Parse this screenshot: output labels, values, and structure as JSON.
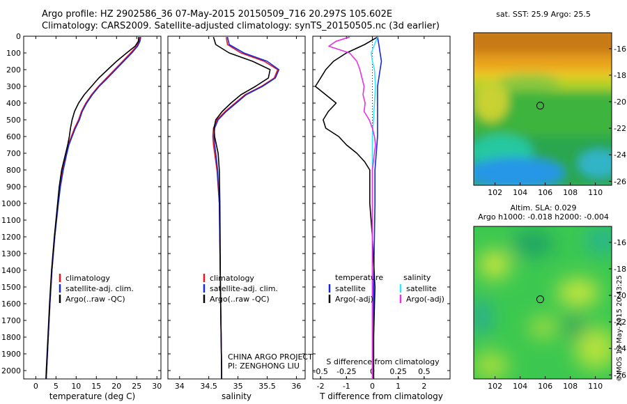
{
  "header": {
    "line1": "Argo profile: HZ 2902586_36 07-May-2015 20150509_716 20.297S 105.602E",
    "line2": "Climatology: CARS2009. Satellite-adjusted climatology: synTS_20150505.nc (3d earlier)"
  },
  "maps": {
    "sst_title": "sat. SST: 25.9 Argo: 25.5",
    "sla_title1": "Altim. SLA: 0.029",
    "sla_title2": "Argo h1000: -0.018 h2000: -0.004",
    "x_ticks": [
      "102",
      "104",
      "106",
      "108",
      "110"
    ],
    "y_ticks": [
      "-16",
      "-18",
      "-20",
      "-22",
      "-24",
      "-26"
    ],
    "x_range": [
      100.3,
      111.3
    ],
    "y_range": [
      -14.8,
      -26.3
    ],
    "float_lon": 105.602,
    "float_lat": -20.297
  },
  "credit": "©IMOS 13-May-2015 20:43:25",
  "project": {
    "line1": "CHINA ARGO PROJECT",
    "line2": "PI: ZENGHONG LIU"
  },
  "colors": {
    "climatology": "#e8141e",
    "satellite": "#1428dc",
    "argo": "#000000",
    "sat_salinity": "#32e6ff",
    "argo_salinity": "#e632e6"
  },
  "chart_data": [
    {
      "type": "line",
      "title": "",
      "xlabel": "temperature (deg C)",
      "ylabel": "",
      "xlim": [
        -3,
        31
      ],
      "ylim": [
        2050,
        0
      ],
      "x_ticks": [
        "0",
        "5",
        "10",
        "15",
        "20",
        "25",
        "30"
      ],
      "y_ticks": [
        "0",
        "100",
        "200",
        "300",
        "400",
        "500",
        "600",
        "700",
        "800",
        "900",
        "1000",
        "1100",
        "1200",
        "1300",
        "1400",
        "1500",
        "1600",
        "1700",
        "1800",
        "1900",
        "2000"
      ],
      "legend": [
        "climatology",
        "satellite-adj. clim.",
        "Argo(..raw -QC)"
      ],
      "legend_position": "bottom-right",
      "series": [
        {
          "name": "climatology",
          "depth": [
            5,
            30,
            60,
            100,
            150,
            200,
            250,
            300,
            350,
            400,
            450,
            500,
            550,
            600,
            650,
            700,
            800,
            900,
            1000,
            1200,
            1400,
            1600,
            1800,
            2000,
            2050
          ],
          "values": [
            25.8,
            25.6,
            25.0,
            23.5,
            21.5,
            19.5,
            17.5,
            15.5,
            13.8,
            12.4,
            11.3,
            10.6,
            9.6,
            8.8,
            8.0,
            7.5,
            6.6,
            6.0,
            5.5,
            4.7,
            4.0,
            3.5,
            3.1,
            2.7,
            2.6
          ]
        },
        {
          "name": "satellite-adj. clim.",
          "depth": [
            5,
            30,
            60,
            100,
            150,
            200,
            250,
            300,
            350,
            400,
            450,
            500,
            550,
            600,
            650,
            700,
            800,
            900,
            1000,
            1200,
            1400,
            1600,
            1800,
            2000,
            2050
          ],
          "values": [
            26.0,
            25.8,
            25.2,
            23.8,
            21.8,
            19.8,
            17.8,
            15.7,
            14.0,
            12.6,
            11.5,
            10.8,
            9.8,
            9.0,
            8.2,
            7.7,
            6.8,
            6.1,
            5.6,
            4.7,
            4.0,
            3.5,
            3.1,
            2.7,
            2.6
          ]
        },
        {
          "name": "Argo(..raw -QC)",
          "depth": [
            5,
            30,
            60,
            100,
            150,
            200,
            250,
            300,
            350,
            400,
            450,
            500,
            550,
            600,
            650,
            700,
            800,
            900,
            1000,
            1200,
            1400,
            1600,
            1800,
            2000,
            2050
          ],
          "values": [
            25.5,
            25.4,
            24.6,
            22.5,
            20.0,
            17.8,
            15.6,
            13.8,
            12.0,
            10.6,
            9.6,
            9.0,
            8.6,
            8.3,
            7.9,
            7.4,
            6.4,
            5.8,
            5.4,
            4.6,
            3.9,
            3.4,
            3.0,
            2.6,
            2.5
          ]
        }
      ]
    },
    {
      "type": "line",
      "title": "",
      "xlabel": "salinity",
      "ylabel": "",
      "xlim": [
        33.8,
        36.15
      ],
      "ylim": [
        2050,
        0
      ],
      "x_ticks": [
        "34",
        "34.5",
        "35",
        "35.5",
        "36"
      ],
      "legend": [
        "climatology",
        "satellite-adj. clim.",
        "Argo(..raw -QC)"
      ],
      "legend_position": "bottom-right",
      "series": [
        {
          "name": "climatology",
          "depth": [
            5,
            50,
            100,
            150,
            200,
            250,
            300,
            350,
            400,
            450,
            500,
            550,
            600,
            650,
            700,
            800,
            1000,
            1500,
            2000,
            2050
          ],
          "values": [
            34.8,
            34.82,
            35.05,
            35.45,
            35.68,
            35.62,
            35.4,
            35.12,
            34.95,
            34.78,
            34.64,
            34.58,
            34.57,
            34.58,
            34.6,
            34.64,
            34.68,
            34.7,
            34.72,
            34.72
          ]
        },
        {
          "name": "satellite-adj. clim.",
          "depth": [
            5,
            50,
            100,
            150,
            200,
            250,
            300,
            350,
            400,
            450,
            500,
            550,
            600,
            650,
            700,
            800,
            1000,
            1500,
            2000,
            2050
          ],
          "values": [
            34.82,
            34.85,
            35.1,
            35.5,
            35.7,
            35.64,
            35.42,
            35.14,
            34.97,
            34.8,
            34.66,
            34.6,
            34.59,
            34.6,
            34.62,
            34.65,
            34.68,
            34.7,
            34.72,
            34.72
          ]
        },
        {
          "name": "Argo(..raw -QC)",
          "depth": [
            5,
            50,
            100,
            150,
            200,
            250,
            300,
            350,
            400,
            450,
            500,
            550,
            600,
            650,
            700,
            800,
            1000,
            1500,
            2000,
            2050
          ],
          "values": [
            34.58,
            34.62,
            34.85,
            35.25,
            35.55,
            35.52,
            35.3,
            35.05,
            34.88,
            34.73,
            34.62,
            34.59,
            34.6,
            34.63,
            34.66,
            34.68,
            34.69,
            34.7,
            34.72,
            34.72
          ]
        }
      ]
    },
    {
      "type": "line",
      "title": "",
      "xlabel": "T difference from climatology",
      "xlabel_top": "S difference from climatology",
      "ylabel": "",
      "xlim": [
        -2.3,
        3.0
      ],
      "ylim": [
        2050,
        0
      ],
      "x_ticks_bottom": [
        "-2",
        "-1",
        "0",
        "1",
        "2"
      ],
      "x_ticks_top": [
        "-0.5",
        "-0.25",
        "0",
        "0.25",
        "0.5"
      ],
      "legend_titles": [
        "temperature",
        "salinity"
      ],
      "legend": [
        "satellite",
        "Argo(-adj)",
        "satellite",
        "Argo(-adj)"
      ],
      "legend_position": "bottom-right",
      "series": [
        {
          "name": "satellite",
          "variable": "temperature",
          "depth": [
            5,
            50,
            100,
            150,
            200,
            250,
            300,
            400,
            500,
            600,
            700,
            800,
            1000,
            1500,
            2000,
            2050
          ],
          "values": [
            0.2,
            0.25,
            0.3,
            0.35,
            0.3,
            0.25,
            0.2,
            0.2,
            0.2,
            0.2,
            0.15,
            0.1,
            0.1,
            0.05,
            0.05,
            0.05
          ]
        },
        {
          "name": "Argo(-adj)",
          "variable": "temperature",
          "depth": [
            5,
            50,
            100,
            150,
            200,
            250,
            300,
            350,
            400,
            450,
            500,
            550,
            600,
            650,
            700,
            750,
            800,
            900,
            1000,
            1200,
            1500,
            1800,
            2000,
            2050
          ],
          "values": [
            0.2,
            -0.3,
            -1.0,
            -1.5,
            -1.8,
            -2.0,
            -2.2,
            -1.8,
            -1.4,
            -1.7,
            -1.9,
            -1.8,
            -1.3,
            -1.0,
            -0.6,
            -0.3,
            -0.1,
            -0.1,
            -0.1,
            0.0,
            0.1,
            0.05,
            0.05,
            0.05
          ]
        },
        {
          "name": "satellite",
          "variable": "salinity",
          "depth": [
            5,
            50,
            100,
            150,
            200,
            300,
            400,
            500,
            600,
            700,
            800,
            1000,
            1500,
            2000,
            2050
          ],
          "values": [
            0.05,
            0.02,
            -0.01,
            0.0,
            0.02,
            0.03,
            0.02,
            0.01,
            0.0,
            0.0,
            0.0,
            0.0,
            0.0,
            0.0,
            0.0
          ]
        },
        {
          "name": "Argo(-adj)",
          "variable": "salinity",
          "depth": [
            5,
            30,
            60,
            100,
            150,
            200,
            250,
            300,
            350,
            400,
            450,
            500,
            550,
            600,
            650,
            700,
            800,
            1000,
            1500,
            2000,
            2050
          ],
          "values": [
            -0.22,
            -0.35,
            -0.42,
            -0.22,
            -0.15,
            -0.12,
            -0.1,
            -0.08,
            -0.09,
            -0.07,
            -0.08,
            -0.03,
            0.0,
            0.02,
            0.03,
            0.02,
            0.0,
            0.0,
            0.0,
            0.0,
            0.0
          ]
        }
      ]
    }
  ]
}
